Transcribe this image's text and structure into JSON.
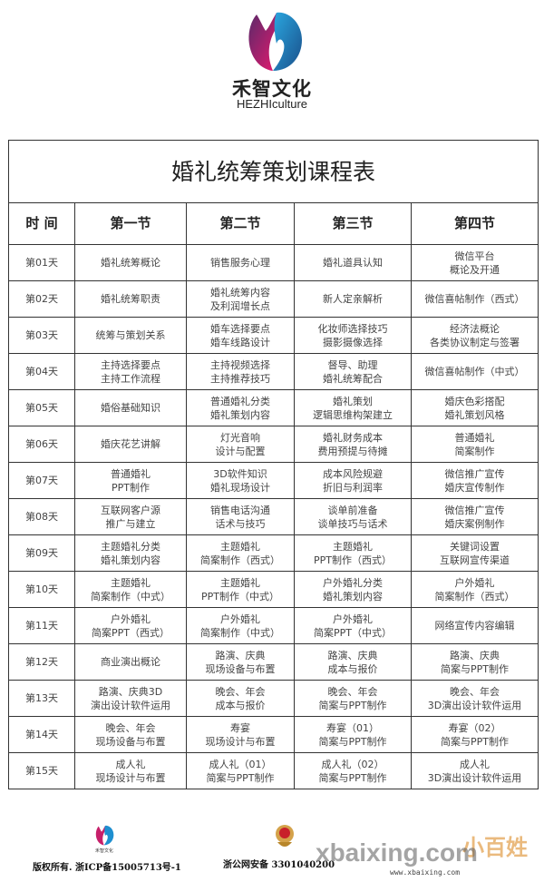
{
  "brand": {
    "name_cn": "禾智文化",
    "name_en": "HEZHIculture",
    "colors": {
      "pink": "#e8196e",
      "blue": "#1e8fd0",
      "purple": "#5a2a6a"
    }
  },
  "table": {
    "title": "婚礼统筹策划课程表",
    "headers": [
      "时 间",
      "第一节",
      "第二节",
      "第三节",
      "第四节"
    ],
    "rows": [
      {
        "day": "第01天",
        "cells": [
          [
            "婚礼统筹概论"
          ],
          [
            "销售服务心理"
          ],
          [
            "婚礼道具认知"
          ],
          [
            "微信平台",
            "概论及开通"
          ]
        ]
      },
      {
        "day": "第02天",
        "cells": [
          [
            "婚礼统筹职责"
          ],
          [
            "婚礼统筹内容",
            "及利润增长点"
          ],
          [
            "新人定亲解析"
          ],
          [
            "微信喜帖制作（西式）"
          ]
        ]
      },
      {
        "day": "第03天",
        "cells": [
          [
            "统筹与策划关系"
          ],
          [
            "婚车选择要点",
            "婚车线路设计"
          ],
          [
            "化妆师选择技巧",
            "摄影摄像选择"
          ],
          [
            "经济法概论",
            "各类协议制定与签署"
          ]
        ]
      },
      {
        "day": "第04天",
        "cells": [
          [
            "主持选择要点",
            "主持工作流程"
          ],
          [
            "主持视频选择",
            "主持推荐技巧"
          ],
          [
            "督导、助理",
            "婚礼统筹配合"
          ],
          [
            "微信喜帖制作（中式）"
          ]
        ]
      },
      {
        "day": "第05天",
        "cells": [
          [
            "婚俗基础知识"
          ],
          [
            "普通婚礼分类",
            "婚礼策划内容"
          ],
          [
            "婚礼策划",
            "逻辑思维构架建立"
          ],
          [
            "婚庆色彩搭配",
            "婚礼策划风格"
          ]
        ]
      },
      {
        "day": "第06天",
        "cells": [
          [
            "婚庆花艺讲解"
          ],
          [
            "灯光音响",
            "设计与配置"
          ],
          [
            "婚礼财务成本",
            "费用预提与待摊"
          ],
          [
            "普通婚礼",
            "简案制作"
          ]
        ]
      },
      {
        "day": "第07天",
        "cells": [
          [
            "普通婚礼",
            "PPT制作"
          ],
          [
            "3D软件知识",
            "婚礼现场设计"
          ],
          [
            "成本风险规避",
            "折旧与利润率"
          ],
          [
            "微信推广宣传",
            "婚庆宣传制作"
          ]
        ]
      },
      {
        "day": "第08天",
        "cells": [
          [
            "互联网客户源",
            "推广与建立"
          ],
          [
            "销售电话沟通",
            "话术与技巧"
          ],
          [
            "谈单前准备",
            "谈单技巧与话术"
          ],
          [
            "微信推广宣传",
            "婚庆案例制作"
          ]
        ]
      },
      {
        "day": "第09天",
        "cells": [
          [
            "主题婚礼分类",
            "婚礼策划内容"
          ],
          [
            "主题婚礼",
            "简案制作（西式）"
          ],
          [
            "主题婚礼",
            "PPT制作（西式）"
          ],
          [
            "关键词设置",
            "互联网宣传渠道"
          ]
        ]
      },
      {
        "day": "第10天",
        "cells": [
          [
            "主题婚礼",
            "简案制作（中式）"
          ],
          [
            "主题婚礼",
            "PPT制作（中式）"
          ],
          [
            "户外婚礼分类",
            "婚礼策划内容"
          ],
          [
            "户外婚礼",
            "简案制作（西式）"
          ]
        ]
      },
      {
        "day": "第11天",
        "cells": [
          [
            "户外婚礼",
            "简案PPT（西式）"
          ],
          [
            "户外婚礼",
            "简案制作（中式）"
          ],
          [
            "户外婚礼",
            "简案PPT（中式）"
          ],
          [
            "网络宣传内容编辑"
          ]
        ]
      },
      {
        "day": "第12天",
        "cells": [
          [
            "商业演出概论"
          ],
          [
            "路演、庆典",
            "现场设备与布置"
          ],
          [
            "路演、庆典",
            "成本与报价"
          ],
          [
            "路演、庆典",
            "简案与PPT制作"
          ]
        ]
      },
      {
        "day": "第13天",
        "cells": [
          [
            "路演、庆典3D",
            "演出设计软件运用"
          ],
          [
            "晚会、年会",
            "成本与报价"
          ],
          [
            "晚会、年会",
            "简案与PPT制作"
          ],
          [
            "晚会、年会",
            "3D演出设计软件运用"
          ]
        ]
      },
      {
        "day": "第14天",
        "cells": [
          [
            "晚会、年会",
            "现场设备与布置"
          ],
          [
            "寿宴",
            "现场设计与布置"
          ],
          [
            "寿宴（01）",
            "简案与PPT制作"
          ],
          [
            "寿宴（02）",
            "简案与PPT制作"
          ]
        ]
      },
      {
        "day": "第15天",
        "cells": [
          [
            "成人礼",
            "现场设计与布置"
          ],
          [
            "成人礼（01）",
            "简案与PPT制作"
          ],
          [
            "成人礼（02）",
            "简案与PPT制作"
          ],
          [
            "成人礼",
            "3D演出设计软件运用"
          ]
        ]
      }
    ]
  },
  "footer": {
    "mini_logo_cn": "禾智文化",
    "copyright": "版权所有. 浙ICP备15005713号-1",
    "police_icon": "police-badge-icon",
    "beian": "浙公网安备 3301040200",
    "watermark": "xbaixing.com",
    "watermark_url": "www.xbaixing.com",
    "watermark_cn": "小百姓"
  }
}
